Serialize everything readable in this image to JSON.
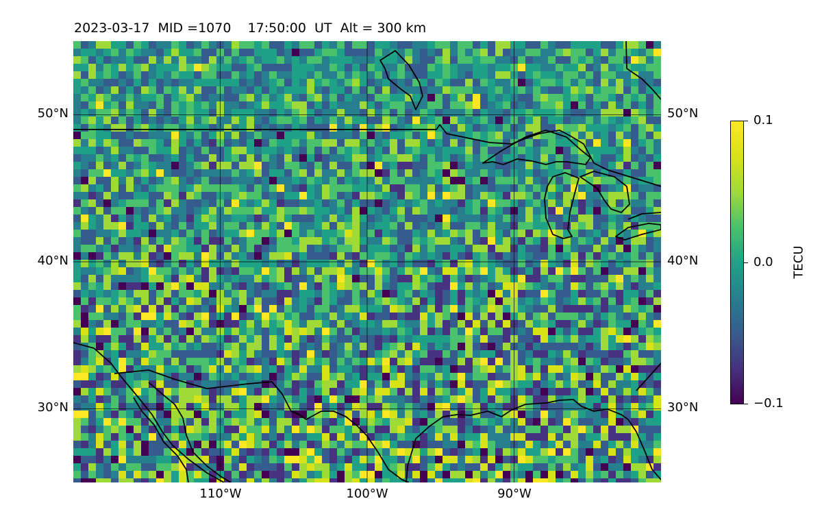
{
  "header": {
    "title": "2023-03-17  MID =1070    17:50:00  UT  Alt = 300 km"
  },
  "map": {
    "projection": "plate-carree",
    "extent": {
      "lon_min": -120,
      "lon_max": -80,
      "lat_min": 25,
      "lat_max": 55
    },
    "gridlines": true,
    "lat_ticks": [
      "50°N",
      "40°N",
      "30°N"
    ],
    "lon_ticks": [
      "110°W",
      "100°W",
      "90°W"
    ],
    "features": [
      "coastlines",
      "country-borders"
    ],
    "field": "TEC perturbation",
    "colormap": "viridis"
  },
  "colorbar": {
    "label": "TECU",
    "max_label": "0.1",
    "mid_label": "0.0",
    "min_label": "−0.1",
    "vmin": -0.1,
    "vmax": 0.1,
    "colors": [
      "#440154",
      "#46327e",
      "#365c8d",
      "#277f8e",
      "#1fa187",
      "#4ac16d",
      "#a0da39",
      "#d8e219",
      "#fde725"
    ]
  }
}
